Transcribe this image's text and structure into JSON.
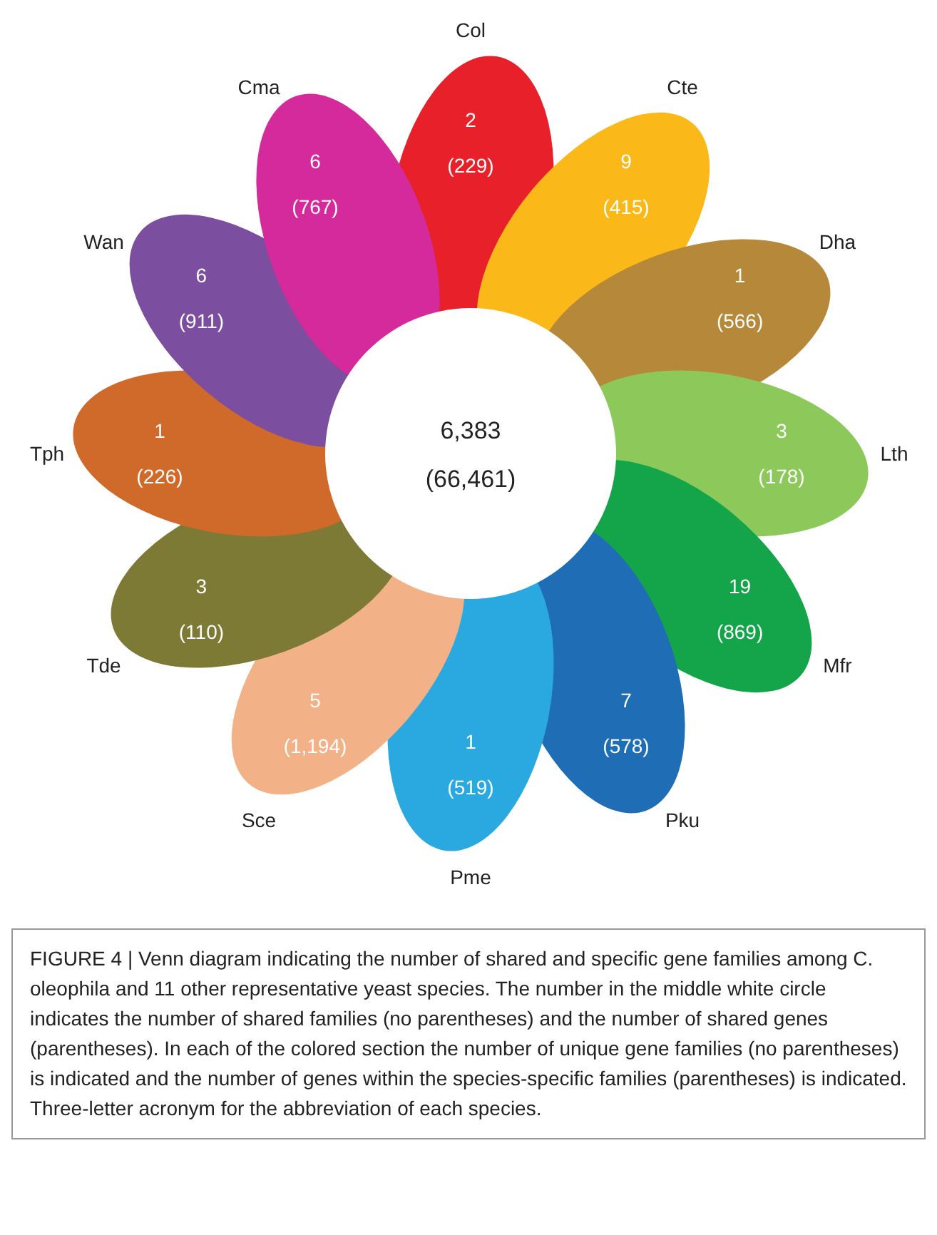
{
  "chart_data": {
    "type": "other",
    "data_labels": true,
    "categories": [
      "Col",
      "Cte",
      "Dha",
      "Lth",
      "Mfr",
      "Pku",
      "Pme",
      "Sce",
      "Tde",
      "Tph",
      "Wan",
      "Cma"
    ],
    "series": [
      {
        "colors": [
          "#e8202a",
          "#fbb919",
          "#b5883a",
          "#8dc95a",
          "#14a44a",
          "#1f6db5",
          "#2aa9e1",
          "#f2b186",
          "#7c7a35",
          "#cf6a2a",
          "#7b4ea0",
          "#d42a9c"
        ],
        "values": [
          2,
          9,
          1,
          3,
          19,
          7,
          1,
          5,
          3,
          1,
          6,
          6
        ]
      },
      {
        "color": "#ffffff",
        "values": [
          229,
          415,
          566,
          178,
          869,
          578,
          519,
          1194,
          110,
          226,
          911,
          767
        ],
        "value_labels": [
          "(229)",
          "(415)",
          "(566)",
          "(178)",
          "(869)",
          "(578)",
          "(519)",
          "(1,194)",
          "(110)",
          "(226)",
          "(911)",
          "(767)"
        ]
      }
    ],
    "annotations": [
      "6,383",
      "(66,461)",
      "FIGURE 4 | Venn diagram indicating the number of shared and specific gene families among C. oleophila and 11 other representative yeast species. The number in the middle white circle indicates the number of shared families (no parentheses) and the number of shared genes (parentheses). In each of the colored section the number of unique gene families (no parentheses) is indicated and the number of genes within the species-specific families (parentheses) is indicated. Three-letter acronym for the abbreviation of each species."
    ]
  }
}
